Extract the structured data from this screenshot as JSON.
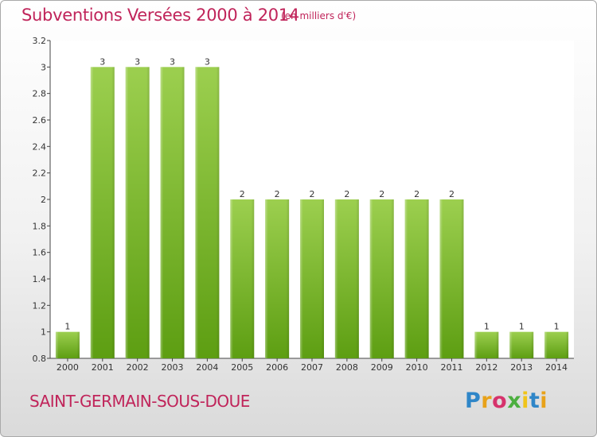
{
  "header": {
    "title": "Subventions Versées 2000 à 2014",
    "unit_note": "(en milliers d'€)"
  },
  "footer": {
    "commune": "SAINT-GERMAIN-SOUS-DOUE",
    "brand": "Proxiti",
    "brand_colors": [
      "#2f86c8",
      "#e8a21a",
      "#d6336c",
      "#4caf3f",
      "#f0c419",
      "#2f86c8",
      "#e8a21a"
    ]
  },
  "colors": {
    "bar_light": "#9ccf4f",
    "bar_dark": "#5d9e12",
    "text": "#333333",
    "title": "#c0245a"
  },
  "chart_data": {
    "type": "bar",
    "categories": [
      "2000",
      "2001",
      "2002",
      "2003",
      "2004",
      "2005",
      "2006",
      "2007",
      "2008",
      "2009",
      "2010",
      "2011",
      "2012",
      "2013",
      "2014"
    ],
    "values": [
      1,
      3,
      3,
      3,
      3,
      2,
      2,
      2,
      2,
      2,
      2,
      2,
      1,
      1,
      1
    ],
    "data_labels": [
      "1",
      "3",
      "3",
      "3",
      "3",
      "2",
      "2",
      "2",
      "2",
      "2",
      "2",
      "2",
      "1",
      "1",
      "1"
    ],
    "title": "Subventions Versées 2000 à 2014",
    "xlabel": "",
    "ylabel": "",
    "ylim": [
      0.8,
      3.2
    ],
    "yticks": [
      0.8,
      1,
      1.2,
      1.4,
      1.6,
      1.8,
      2,
      2.2,
      2.4,
      2.6,
      2.8,
      3,
      3.2
    ],
    "ytick_labels": [
      "0.8",
      "1",
      "1.2",
      "1.4",
      "1.6",
      "1.8",
      "2",
      "2.2",
      "2.4",
      "2.6",
      "2.8",
      "3",
      "3.2"
    ],
    "grid": false,
    "legend": "none"
  }
}
